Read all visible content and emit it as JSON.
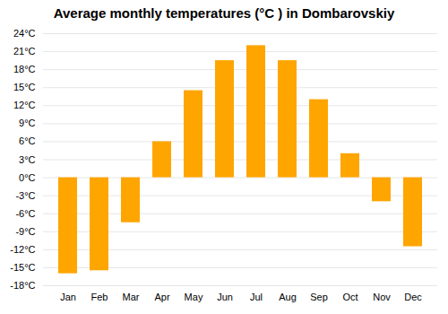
{
  "chart_data": {
    "type": "bar",
    "title": "Average monthly temperatures (°C ) in Dombarovskiy",
    "categories": [
      "Jan",
      "Feb",
      "Mar",
      "Apr",
      "May",
      "Jun",
      "Jul",
      "Aug",
      "Sep",
      "Oct",
      "Nov",
      "Dec"
    ],
    "values": [
      -16,
      -15.5,
      -7.5,
      6,
      14.5,
      19.5,
      22,
      19.5,
      13,
      4,
      -4,
      -11.5
    ],
    "color": "#FFA500",
    "ylim": [
      -18,
      24
    ],
    "yticks": [
      {
        "value": -18,
        "label": "-18°C"
      },
      {
        "value": -15,
        "label": "-15°C"
      },
      {
        "value": -12,
        "label": "-12°C"
      },
      {
        "value": -9,
        "label": "-9°C"
      },
      {
        "value": -6,
        "label": "-6°C"
      },
      {
        "value": -3,
        "label": "-3°C"
      },
      {
        "value": 0,
        "label": "0°C"
      },
      {
        "value": 3,
        "label": "3°C"
      },
      {
        "value": 6,
        "label": "6°C"
      },
      {
        "value": 9,
        "label": "9°C"
      },
      {
        "value": 12,
        "label": "12°C"
      },
      {
        "value": 15,
        "label": "15°C"
      },
      {
        "value": 18,
        "label": "18°C"
      },
      {
        "value": 21,
        "label": "21°C"
      },
      {
        "value": 24,
        "label": "24°C"
      }
    ],
    "grid": true
  }
}
